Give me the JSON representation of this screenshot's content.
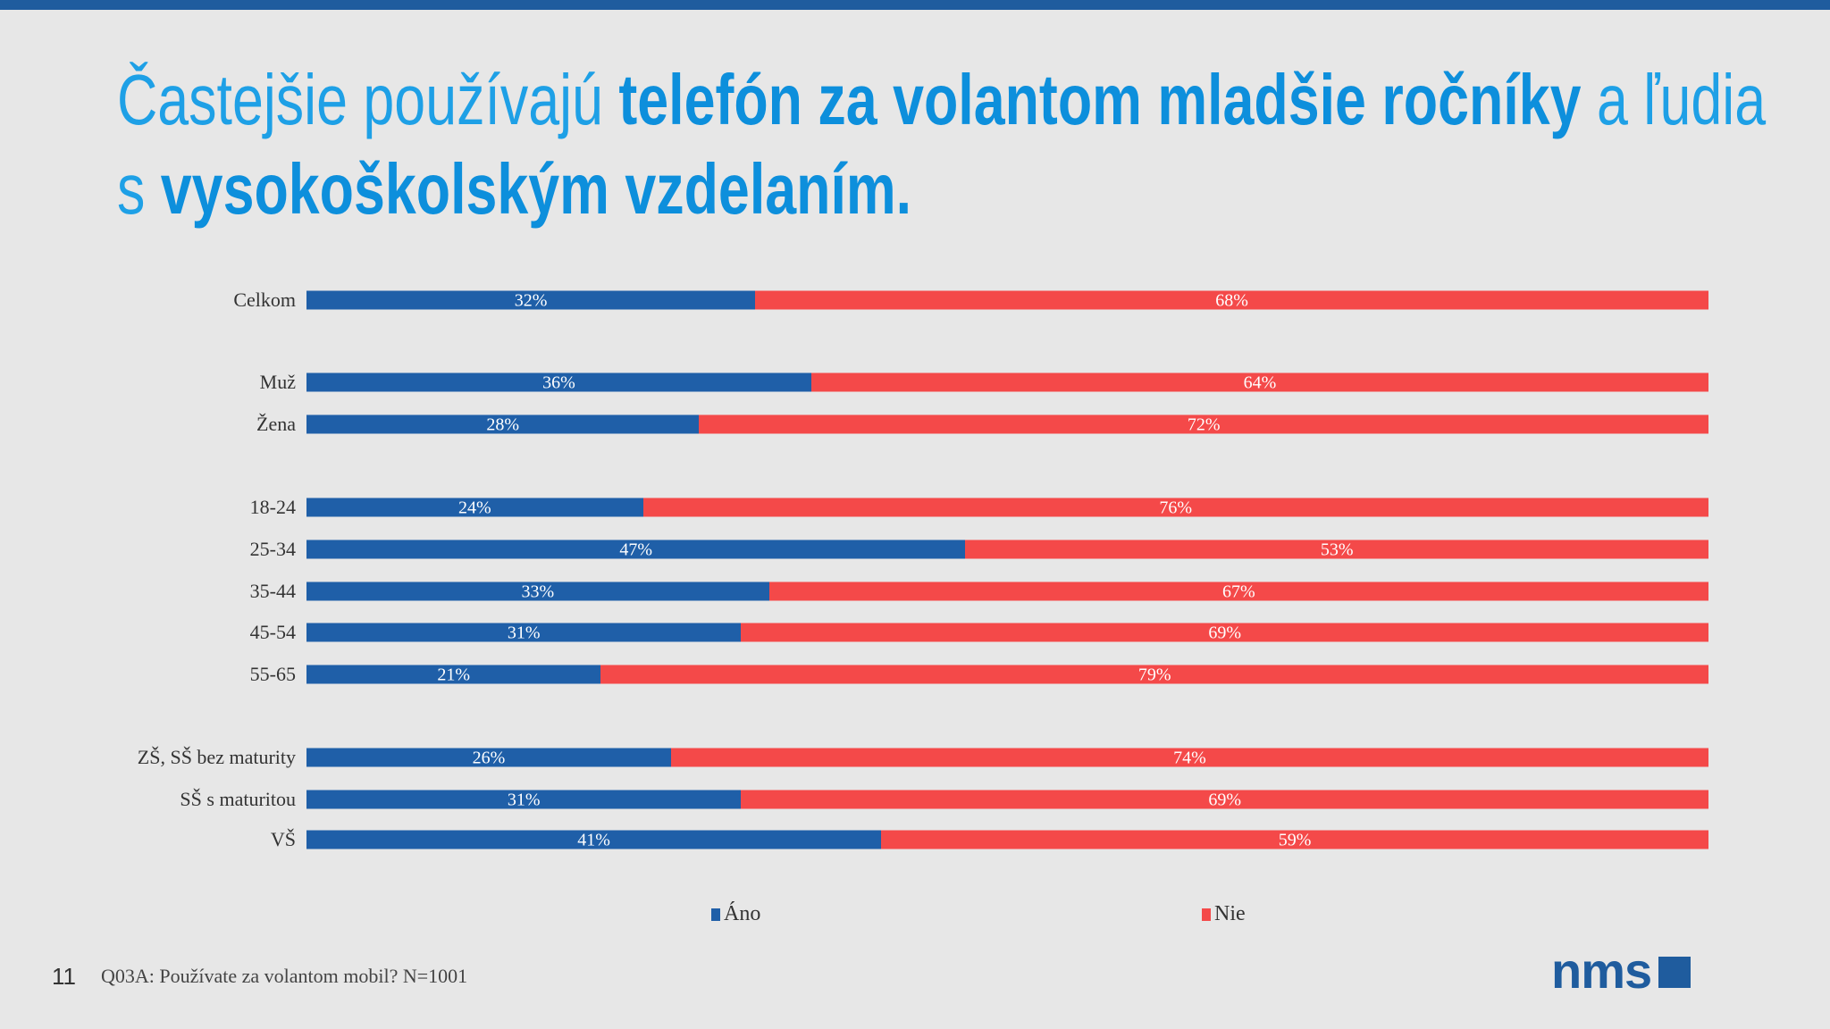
{
  "title": {
    "line1_prefix": "Častejšie používajú ",
    "line1_bold": "telefón za volantom mladšie ročníky",
    "line1_suffix": " a ľudia",
    "line2_prefix": "s ",
    "line2_bold": "vysokoškolským vzdelaním."
  },
  "chart_data": {
    "type": "bar",
    "orientation": "horizontal",
    "stacked": "100%",
    "categories": [
      "Celkom",
      "Muž",
      "Žena",
      "18-24",
      "25-34",
      "35-44",
      "45-54",
      "55-65",
      "ZŠ, SŠ bez maturity",
      "SŠ s maturitou",
      "VŠ"
    ],
    "series": [
      {
        "name": "Áno",
        "color": "#1f5fa8",
        "values": [
          32,
          36,
          28,
          24,
          47,
          33,
          31,
          21,
          26,
          31,
          41
        ]
      },
      {
        "name": "Nie",
        "color": "#f44949",
        "values": [
          68,
          64,
          72,
          76,
          53,
          67,
          69,
          79,
          74,
          69,
          59
        ]
      }
    ],
    "xlim": [
      0,
      100
    ],
    "legend": "bottom",
    "grid": false
  },
  "footer": {
    "page_number": "11",
    "note": "Q03A: Používate za volantom mobil? N=1001",
    "logo_text": "nms"
  }
}
